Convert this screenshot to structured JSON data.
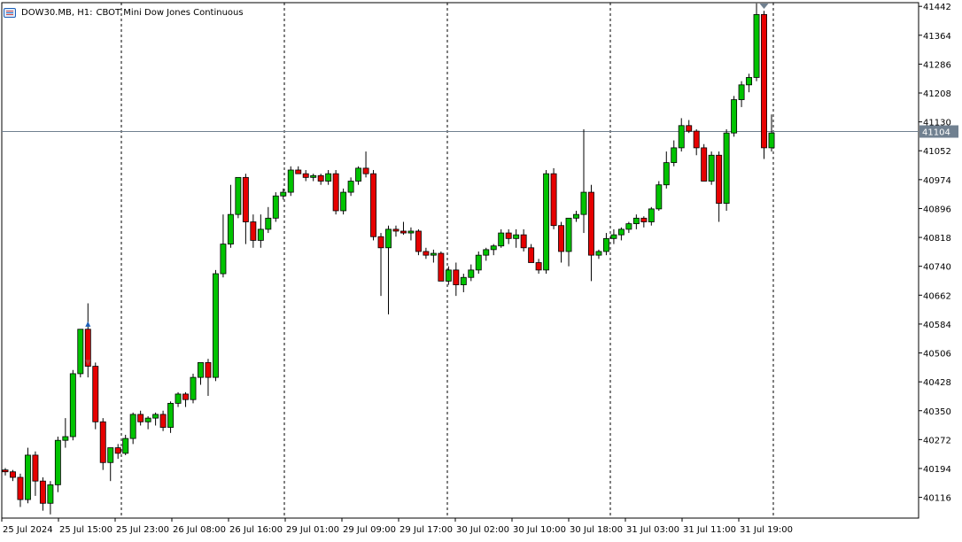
{
  "chart_header": {
    "symbol": "DOW30.MB, H1:",
    "description": "CBOT Mini Dow Jones Continuous",
    "icon": "chart-window-icon"
  },
  "colors": {
    "up": "#00c300",
    "down": "#e60000",
    "wick": "#000000",
    "grid_separator": "#000000",
    "price_line": "#708090",
    "price_label_bg": "#708090",
    "price_label_text": "#ffffff",
    "signal_marker": "#708090"
  },
  "chart_data": {
    "type": "candlestick",
    "timeframe": "H1",
    "y_ticks": [
      41442,
      41364,
      41286,
      41208,
      41130,
      41052,
      40974,
      40896,
      40818,
      40740,
      40662,
      40584,
      40506,
      40428,
      40350,
      40272,
      40194,
      40116
    ],
    "ylim": [
      40060,
      41452
    ],
    "x_tick_labels": [
      "25 Jul 2024",
      "25 Jul 15:00",
      "25 Jul 23:00",
      "26 Jul 08:00",
      "26 Jul 16:00",
      "29 Jul 01:00",
      "29 Jul 09:00",
      "29 Jul 17:00",
      "30 Jul 02:00",
      "30 Jul 10:00",
      "30 Jul 18:00",
      "31 Jul 03:00",
      "31 Jul 11:00",
      "31 Jul 19:00"
    ],
    "current_price": 41104,
    "candles": [
      [
        40190,
        40195,
        40175,
        40185
      ],
      [
        40185,
        40190,
        40160,
        40170
      ],
      [
        40170,
        40180,
        40090,
        40110
      ],
      [
        40110,
        40250,
        40100,
        40230
      ],
      [
        40230,
        40240,
        40120,
        40160
      ],
      [
        40160,
        40170,
        40080,
        40100
      ],
      [
        40100,
        40160,
        40070,
        40150
      ],
      [
        40150,
        40280,
        40130,
        40270
      ],
      [
        40270,
        40330,
        40250,
        40280
      ],
      [
        40280,
        40460,
        40270,
        40450
      ],
      [
        40450,
        40570,
        40440,
        40570
      ],
      [
        40570,
        40640,
        40440,
        40470
      ],
      [
        40470,
        40480,
        40300,
        40320
      ],
      [
        40320,
        40330,
        40190,
        40210
      ],
      [
        40210,
        40240,
        40160,
        40250
      ],
      [
        40250,
        40260,
        40220,
        40235
      ],
      [
        40235,
        40285,
        40230,
        40275
      ],
      [
        40275,
        40345,
        40260,
        40340
      ],
      [
        40340,
        40350,
        40310,
        40320
      ],
      [
        40320,
        40335,
        40300,
        40330
      ],
      [
        40330,
        40345,
        40310,
        40340
      ],
      [
        40340,
        40350,
        40295,
        40305
      ],
      [
        40305,
        40375,
        40290,
        40370
      ],
      [
        40370,
        40400,
        40360,
        40395
      ],
      [
        40395,
        40400,
        40360,
        40380
      ],
      [
        40380,
        40450,
        40370,
        40440
      ],
      [
        40440,
        40470,
        40420,
        40480
      ],
      [
        40480,
        40490,
        40390,
        40440
      ],
      [
        40440,
        40730,
        40430,
        40720
      ],
      [
        40720,
        40880,
        40710,
        40800
      ],
      [
        40800,
        40960,
        40790,
        40880
      ],
      [
        40880,
        40980,
        40870,
        40980
      ],
      [
        40980,
        40990,
        40800,
        40860
      ],
      [
        40860,
        40880,
        40790,
        40810
      ],
      [
        40810,
        40880,
        40790,
        40840
      ],
      [
        40840,
        40900,
        40830,
        40870
      ],
      [
        40870,
        40940,
        40860,
        40930
      ],
      [
        40930,
        40950,
        40920,
        40940
      ],
      [
        40940,
        41010,
        40930,
        41000
      ],
      [
        41000,
        41010,
        40990,
        40990
      ],
      [
        40990,
        41000,
        40970,
        40980
      ],
      [
        40980,
        40990,
        40970,
        40985
      ],
      [
        40985,
        40990,
        40960,
        40970
      ],
      [
        40970,
        41000,
        40960,
        40990
      ],
      [
        40990,
        41000,
        40880,
        40890
      ],
      [
        40890,
        40950,
        40880,
        40940
      ],
      [
        40940,
        40980,
        40930,
        40970
      ],
      [
        40970,
        41010,
        40960,
        41005
      ],
      [
        41005,
        41050,
        40980,
        40990
      ],
      [
        40990,
        41000,
        40810,
        40820
      ],
      [
        40820,
        40830,
        40660,
        40790
      ],
      [
        40790,
        40850,
        40610,
        40840
      ],
      [
        40840,
        40850,
        40820,
        40835
      ],
      [
        40835,
        40860,
        40825,
        40830
      ],
      [
        40830,
        40845,
        40810,
        40835
      ],
      [
        40835,
        40840,
        40770,
        40780
      ],
      [
        40780,
        40790,
        40760,
        40770
      ],
      [
        40770,
        40785,
        40750,
        40775
      ],
      [
        40775,
        40780,
        40700,
        40700
      ],
      [
        40700,
        40740,
        40690,
        40730
      ],
      [
        40730,
        40750,
        40660,
        40690
      ],
      [
        40690,
        40720,
        40670,
        40710
      ],
      [
        40710,
        40745,
        40700,
        40730
      ],
      [
        40730,
        40780,
        40720,
        40770
      ],
      [
        40770,
        40790,
        40755,
        40785
      ],
      [
        40785,
        40800,
        40770,
        40795
      ],
      [
        40795,
        40840,
        40790,
        40830
      ],
      [
        40830,
        40840,
        40800,
        40815
      ],
      [
        40815,
        40840,
        40790,
        40825
      ],
      [
        40825,
        40840,
        40780,
        40790
      ],
      [
        40790,
        40800,
        40750,
        40750
      ],
      [
        40750,
        40760,
        40720,
        40730
      ],
      [
        40730,
        41000,
        40720,
        40990
      ],
      [
        40990,
        41005,
        40840,
        40850
      ],
      [
        40850,
        40860,
        40750,
        40780
      ],
      [
        40780,
        40870,
        40740,
        40870
      ],
      [
        40870,
        40890,
        40860,
        40880
      ],
      [
        40880,
        41110,
        40830,
        40940
      ],
      [
        40940,
        40960,
        40700,
        40770
      ],
      [
        40770,
        40785,
        40760,
        40780
      ],
      [
        40780,
        40830,
        40770,
        40815
      ],
      [
        40815,
        40840,
        40800,
        40825
      ],
      [
        40825,
        40845,
        40810,
        40840
      ],
      [
        40840,
        40860,
        40830,
        40855
      ],
      [
        40855,
        40880,
        40840,
        40870
      ],
      [
        40870,
        40875,
        40845,
        40860
      ],
      [
        40860,
        40900,
        40850,
        40895
      ],
      [
        40895,
        40970,
        40890,
        40960
      ],
      [
        40960,
        41050,
        40950,
        41020
      ],
      [
        41020,
        41080,
        41010,
        41060
      ],
      [
        41060,
        41140,
        41050,
        41120
      ],
      [
        41120,
        41135,
        41100,
        41105
      ],
      [
        41105,
        41110,
        41040,
        41060
      ],
      [
        41060,
        41070,
        40970,
        40970
      ],
      [
        40970,
        41050,
        40960,
        41040
      ],
      [
        41040,
        41050,
        40860,
        40910
      ],
      [
        40910,
        41110,
        40890,
        41100
      ],
      [
        41100,
        41200,
        41090,
        41190
      ],
      [
        41190,
        41240,
        41170,
        41230
      ],
      [
        41230,
        41260,
        41210,
        41250
      ],
      [
        41250,
        41450,
        41240,
        41420
      ],
      [
        41420,
        41430,
        41030,
        41060
      ],
      [
        41060,
        41150,
        41050,
        41100
      ]
    ]
  }
}
